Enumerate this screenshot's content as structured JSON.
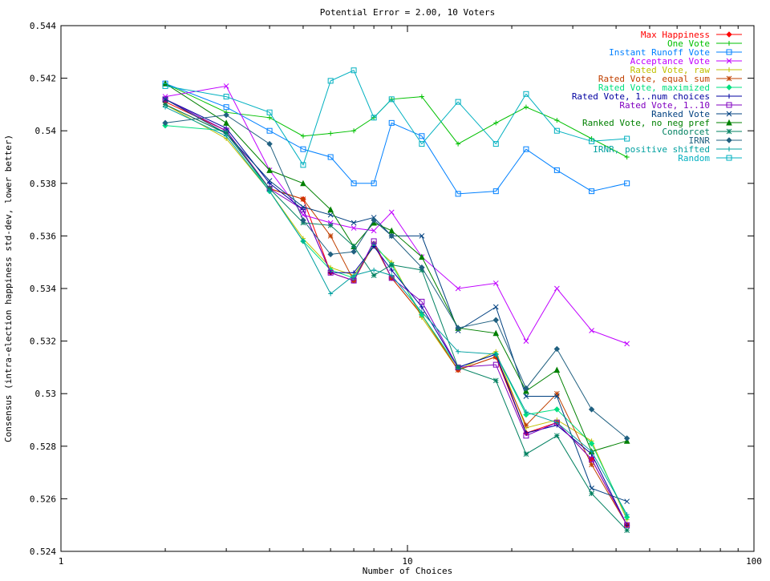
{
  "chart_data": {
    "type": "line",
    "title": "Potential Error = 2.00, 10 Voters",
    "xlabel": "Number of Choices",
    "ylabel": "Consensus (intra-election happiness std-dev, lower better)",
    "x_scale": "log",
    "xlim": [
      1,
      100
    ],
    "ylim": [
      0.524,
      0.544
    ],
    "x_ticks": [
      1,
      10,
      100
    ],
    "x_tick_labels": [
      "1",
      "10",
      "100"
    ],
    "y_ticks": [
      0.524,
      0.526,
      0.528,
      0.53,
      0.532,
      0.534,
      0.536,
      0.538,
      0.54,
      0.542,
      0.544
    ],
    "y_tick_labels": [
      "0.524",
      "0.526",
      "0.528",
      "0.53",
      "0.532",
      "0.534",
      "0.536",
      "0.538",
      "0.54",
      "0.542",
      "0.544"
    ],
    "grid": false,
    "legend_position": "top-right",
    "x": [
      2,
      3,
      4,
      5,
      6,
      7,
      8,
      9,
      11,
      14,
      18,
      22,
      27,
      34,
      43
    ],
    "series": [
      {
        "name": "Max Happiness",
        "color": "#ff0000",
        "marker": "diamond",
        "values": [
          0.5411,
          0.54,
          0.5378,
          0.5374,
          0.5346,
          0.5343,
          0.5357,
          0.5344,
          0.533,
          0.5309,
          0.5314,
          0.5285,
          0.5289,
          0.5275,
          0.525
        ]
      },
      {
        "name": "One Vote",
        "color": "#00c000",
        "marker": "plus",
        "values": [
          0.5418,
          0.5407,
          0.5405,
          0.5398,
          0.5399,
          0.54,
          0.5405,
          0.5412,
          0.5413,
          0.5395,
          0.5403,
          0.5409,
          0.5404,
          0.5397,
          0.539
        ]
      },
      {
        "name": "Instant Runoff Vote",
        "color": "#0080ff",
        "marker": "square",
        "values": [
          0.5418,
          0.5409,
          0.54,
          0.5393,
          0.539,
          0.538,
          0.538,
          0.5403,
          0.5398,
          0.5376,
          0.5377,
          0.5393,
          0.5385,
          0.5377,
          0.538
        ]
      },
      {
        "name": "Acceptance Vote",
        "color": "#c000ff",
        "marker": "x",
        "values": [
          0.5413,
          0.5417,
          0.5385,
          0.5368,
          0.5365,
          0.5363,
          0.5362,
          0.5369,
          0.5352,
          0.534,
          0.5342,
          0.532,
          0.534,
          0.5324,
          0.5319
        ]
      },
      {
        "name": "Rated Vote, raw",
        "color": "#c0c000",
        "marker": "plus",
        "values": [
          0.541,
          0.5397,
          0.5377,
          0.5359,
          0.5348,
          0.5345,
          0.5356,
          0.535,
          0.5329,
          0.5309,
          0.5316,
          0.5287,
          0.529,
          0.5282,
          0.5252
        ]
      },
      {
        "name": "Rated Vote, equal sum",
        "color": "#c04000",
        "marker": "star",
        "values": [
          0.541,
          0.5399,
          0.5378,
          0.5374,
          0.536,
          0.5343,
          0.5357,
          0.5344,
          0.533,
          0.5309,
          0.5314,
          0.5288,
          0.53,
          0.5273,
          0.525
        ]
      },
      {
        "name": "Rated Vote, maximized",
        "color": "#00e080",
        "marker": "diamond",
        "values": [
          0.5402,
          0.54,
          0.5377,
          0.5358,
          0.5347,
          0.5344,
          0.5357,
          0.5349,
          0.533,
          0.531,
          0.5315,
          0.5292,
          0.5294,
          0.5281,
          0.5253
        ]
      },
      {
        "name": "Rated Vote, 1..num choices",
        "color": "#0000a0",
        "marker": "plus",
        "values": [
          0.5412,
          0.5401,
          0.538,
          0.537,
          0.5346,
          0.5346,
          0.5356,
          0.5347,
          0.5333,
          0.531,
          0.5315,
          0.5285,
          0.5288,
          0.5277,
          0.525
        ]
      },
      {
        "name": "Rated Vote, 1..10",
        "color": "#8000c0",
        "marker": "square",
        "values": [
          0.5412,
          0.54,
          0.5378,
          0.537,
          0.5346,
          0.5343,
          0.5358,
          0.5344,
          0.5335,
          0.531,
          0.5311,
          0.5284,
          0.5289,
          0.5275,
          0.525
        ]
      },
      {
        "name": "Ranked Vote",
        "color": "#004080",
        "marker": "x",
        "values": [
          0.5412,
          0.5399,
          0.5381,
          0.5371,
          0.5368,
          0.5365,
          0.5367,
          0.536,
          0.536,
          0.5324,
          0.5333,
          0.5299,
          0.5299,
          0.5264,
          0.5259
        ]
      },
      {
        "name": "Ranked Vote, no neg pref",
        "color": "#008000",
        "marker": "triangle",
        "values": [
          0.5418,
          0.5403,
          0.5385,
          0.538,
          0.537,
          0.5356,
          0.5365,
          0.5362,
          0.5352,
          0.5325,
          0.5323,
          0.5301,
          0.5309,
          0.5278,
          0.5282
        ]
      },
      {
        "name": "Condorcet",
        "color": "#008060",
        "marker": "star",
        "values": [
          0.541,
          0.5399,
          0.5378,
          0.5365,
          0.5364,
          0.5356,
          0.5345,
          0.5349,
          0.5347,
          0.531,
          0.5305,
          0.5277,
          0.5284,
          0.5262,
          0.5248
        ]
      },
      {
        "name": "IRNR",
        "color": "#206080",
        "marker": "diamond",
        "values": [
          0.5403,
          0.5406,
          0.5395,
          0.5366,
          0.5353,
          0.5354,
          0.5366,
          0.536,
          0.5348,
          0.5325,
          0.5328,
          0.5302,
          0.5317,
          0.5294,
          0.5283
        ]
      },
      {
        "name": "IRNR, positive shifted",
        "color": "#00a0a0",
        "marker": "plus",
        "values": [
          0.5409,
          0.5398,
          0.5377,
          0.5358,
          0.5338,
          0.5345,
          0.5347,
          0.5345,
          0.5331,
          0.5316,
          0.5315,
          0.5293,
          0.5289,
          0.5278,
          0.5254
        ]
      },
      {
        "name": "Random",
        "color": "#00b0c0",
        "marker": "square",
        "values": [
          0.5417,
          0.5413,
          0.5407,
          0.5387,
          0.5419,
          0.5423,
          0.5405,
          0.5412,
          0.5395,
          0.5411,
          0.5395,
          0.5414,
          0.54,
          0.5396,
          0.5397
        ]
      }
    ]
  }
}
